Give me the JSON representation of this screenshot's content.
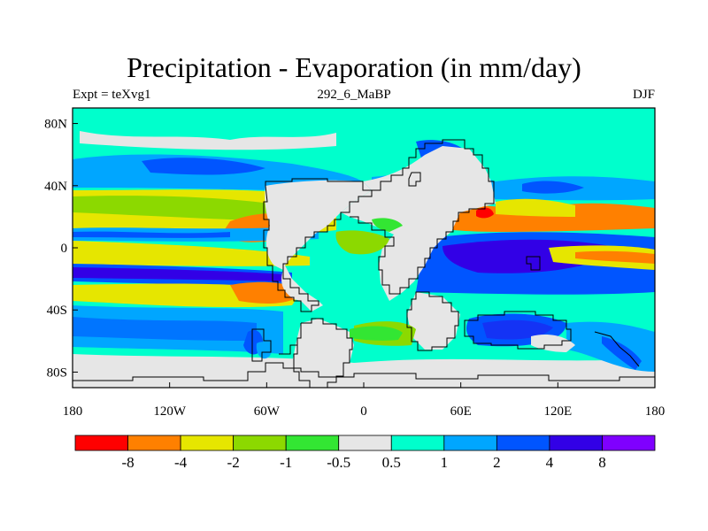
{
  "title": "Precipitation - Evaporation (in mm/day)",
  "subtitle": {
    "left": "Expt = teXvg1",
    "center": "292_6_MaBP",
    "right": "DJF"
  },
  "x_ticks": [
    "180",
    "120W",
    "60W",
    "0",
    "60E",
    "120E",
    "180"
  ],
  "y_ticks": [
    "80N",
    "40N",
    "0",
    "40S",
    "80S"
  ],
  "legend": {
    "labels": [
      "-8",
      "-4",
      "-2",
      "-1",
      "-0.5",
      "0.5",
      "1",
      "2",
      "4",
      "8"
    ],
    "colors": [
      "#ff0000",
      "#ff8000",
      "#e6e600",
      "#8cd900",
      "#33e633",
      "#e6e6e6",
      "#00ffcc",
      "#00a6ff",
      "#0055ff",
      "#3200e6",
      "#7f00ff"
    ]
  },
  "chart_data": {
    "type": "filled-contour map",
    "title": "Precipitation - Evaporation (in mm/day)",
    "x_range": [
      -180,
      180
    ],
    "y_range": [
      -90,
      90
    ],
    "bands": [
      {
        "lat": 75,
        "class": 6
      },
      {
        "lat": 55,
        "class": 8
      },
      {
        "lat": 35,
        "class": 3
      },
      {
        "lat": 15,
        "class": 8
      },
      {
        "lat": 5,
        "class": 3
      },
      {
        "lat": -10,
        "class": 9
      },
      {
        "lat": -25,
        "class": 3
      },
      {
        "lat": -45,
        "class": 8
      },
      {
        "lat": -70,
        "class": 6
      }
    ]
  }
}
